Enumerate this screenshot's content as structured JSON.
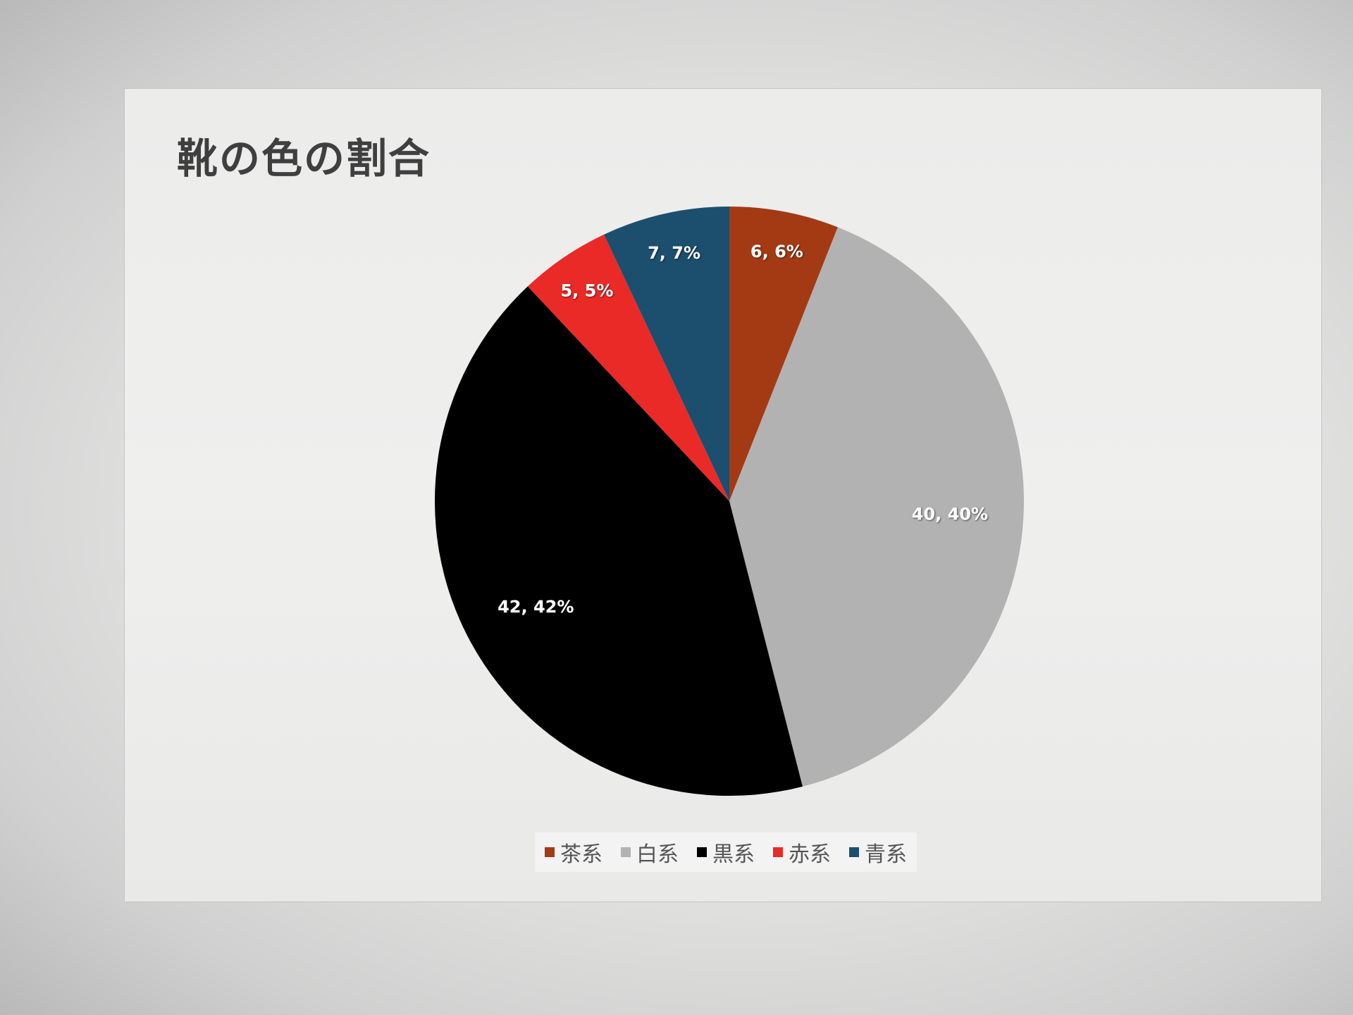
{
  "chart_data": {
    "type": "pie",
    "title": "靴の色の割合",
    "categories": [
      "茶系",
      "白系",
      "黒系",
      "赤系",
      "青系"
    ],
    "values": [
      6,
      40,
      42,
      5,
      7
    ],
    "percentages": [
      6,
      40,
      42,
      5,
      7
    ],
    "data_labels": [
      "6, 6%",
      "40, 40%",
      "42, 42%",
      "5, 5%",
      "7, 7%"
    ],
    "colors": [
      "#a33a14",
      "#b2b2b2",
      "#000000",
      "#ea2a27",
      "#1c4f6e"
    ],
    "start_angle_deg": 0,
    "direction": "clockwise",
    "legend_position": "bottom"
  }
}
